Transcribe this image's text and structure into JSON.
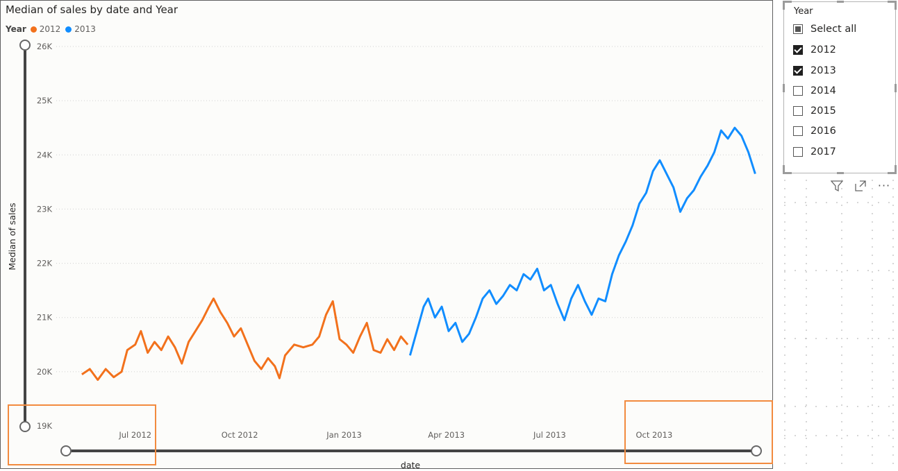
{
  "chart_data": {
    "type": "line",
    "title": "Median of sales by date and Year",
    "xlabel": "date",
    "ylabel": "Median of sales",
    "legend_title": "Year",
    "legend_position": "top-left",
    "grid": "horizontal dotted",
    "x_range": [
      "2012-05-01",
      "2013-12-30"
    ],
    "ylim": [
      19000,
      26000
    ],
    "y_ticks": [
      19000,
      20000,
      21000,
      22000,
      23000,
      24000,
      25000,
      26000
    ],
    "y_tick_labels": [
      "19K",
      "20K",
      "21K",
      "22K",
      "23K",
      "24K",
      "25K",
      "26K"
    ],
    "x_tick_labels": [
      "Jul 2012",
      "Oct 2012",
      "Jan 2013",
      "Apr 2013",
      "Jul 2013",
      "Oct 2013"
    ],
    "x_tick_dates": [
      "2012-07-01",
      "2012-10-01",
      "2013-01-01",
      "2013-04-01",
      "2013-07-01",
      "2013-10-01"
    ],
    "series": [
      {
        "name": "2012",
        "color": "#f2711c",
        "points": [
          [
            "2012-05-15",
            19950
          ],
          [
            "2012-05-22",
            20050
          ],
          [
            "2012-05-29",
            19850
          ],
          [
            "2012-06-05",
            20050
          ],
          [
            "2012-06-12",
            19900
          ],
          [
            "2012-06-19",
            20000
          ],
          [
            "2012-06-24",
            20400
          ],
          [
            "2012-07-01",
            20500
          ],
          [
            "2012-07-06",
            20750
          ],
          [
            "2012-07-12",
            20350
          ],
          [
            "2012-07-18",
            20550
          ],
          [
            "2012-07-24",
            20400
          ],
          [
            "2012-07-30",
            20650
          ],
          [
            "2012-08-05",
            20450
          ],
          [
            "2012-08-11",
            20150
          ],
          [
            "2012-08-17",
            20550
          ],
          [
            "2012-08-23",
            20750
          ],
          [
            "2012-08-29",
            20950
          ],
          [
            "2012-09-04",
            21200
          ],
          [
            "2012-09-08",
            21350
          ],
          [
            "2012-09-14",
            21100
          ],
          [
            "2012-09-20",
            20900
          ],
          [
            "2012-09-26",
            20650
          ],
          [
            "2012-10-02",
            20800
          ],
          [
            "2012-10-08",
            20500
          ],
          [
            "2012-10-14",
            20200
          ],
          [
            "2012-10-20",
            20050
          ],
          [
            "2012-10-26",
            20250
          ],
          [
            "2012-11-01",
            20100
          ],
          [
            "2012-11-05",
            19880
          ],
          [
            "2012-11-10",
            20300
          ],
          [
            "2012-11-18",
            20500
          ],
          [
            "2012-11-26",
            20450
          ],
          [
            "2012-12-04",
            20500
          ],
          [
            "2012-12-10",
            20650
          ],
          [
            "2012-12-16",
            21050
          ],
          [
            "2012-12-22",
            21300
          ],
          [
            "2012-12-28",
            20600
          ],
          [
            "2013-01-03",
            20500
          ],
          [
            "2013-01-09",
            20350
          ],
          [
            "2013-01-15",
            20650
          ],
          [
            "2013-01-21",
            20900
          ],
          [
            "2013-01-27",
            20400
          ],
          [
            "2013-02-02",
            20350
          ],
          [
            "2013-02-08",
            20600
          ],
          [
            "2013-02-14",
            20400
          ],
          [
            "2013-02-20",
            20650
          ],
          [
            "2013-02-26",
            20500
          ]
        ]
      },
      {
        "name": "2013",
        "color": "#118dff",
        "points": [
          [
            "2013-02-28",
            20300
          ],
          [
            "2013-03-06",
            20750
          ],
          [
            "2013-03-12",
            21200
          ],
          [
            "2013-03-16",
            21350
          ],
          [
            "2013-03-22",
            21000
          ],
          [
            "2013-03-28",
            21200
          ],
          [
            "2013-04-03",
            20750
          ],
          [
            "2013-04-09",
            20900
          ],
          [
            "2013-04-15",
            20550
          ],
          [
            "2013-04-21",
            20700
          ],
          [
            "2013-04-27",
            21000
          ],
          [
            "2013-05-03",
            21350
          ],
          [
            "2013-05-09",
            21500
          ],
          [
            "2013-05-15",
            21250
          ],
          [
            "2013-05-21",
            21400
          ],
          [
            "2013-05-27",
            21600
          ],
          [
            "2013-06-02",
            21500
          ],
          [
            "2013-06-08",
            21800
          ],
          [
            "2013-06-14",
            21700
          ],
          [
            "2013-06-20",
            21900
          ],
          [
            "2013-06-26",
            21500
          ],
          [
            "2013-07-02",
            21600
          ],
          [
            "2013-07-08",
            21250
          ],
          [
            "2013-07-14",
            20950
          ],
          [
            "2013-07-20",
            21350
          ],
          [
            "2013-07-26",
            21600
          ],
          [
            "2013-08-01",
            21300
          ],
          [
            "2013-08-07",
            21050
          ],
          [
            "2013-08-13",
            21350
          ],
          [
            "2013-08-19",
            21300
          ],
          [
            "2013-08-25",
            21800
          ],
          [
            "2013-08-31",
            22150
          ],
          [
            "2013-09-06",
            22400
          ],
          [
            "2013-09-12",
            22700
          ],
          [
            "2013-09-18",
            23100
          ],
          [
            "2013-09-24",
            23300
          ],
          [
            "2013-09-30",
            23700
          ],
          [
            "2013-10-06",
            23900
          ],
          [
            "2013-10-12",
            23650
          ],
          [
            "2013-10-18",
            23400
          ],
          [
            "2013-10-24",
            22950
          ],
          [
            "2013-10-30",
            23200
          ],
          [
            "2013-11-05",
            23350
          ],
          [
            "2013-11-11",
            23600
          ],
          [
            "2013-11-17",
            23800
          ],
          [
            "2013-11-23",
            24050
          ],
          [
            "2013-11-29",
            24450
          ],
          [
            "2013-12-05",
            24300
          ],
          [
            "2013-12-11",
            24500
          ],
          [
            "2013-12-17",
            24350
          ],
          [
            "2013-12-23",
            24050
          ],
          [
            "2013-12-29",
            23650
          ]
        ]
      }
    ]
  },
  "slicer": {
    "title": "Year",
    "items": [
      {
        "label": "Select all",
        "state": "partial"
      },
      {
        "label": "2012",
        "state": "checked"
      },
      {
        "label": "2013",
        "state": "checked"
      },
      {
        "label": "2014",
        "state": "unchecked"
      },
      {
        "label": "2015",
        "state": "unchecked"
      },
      {
        "label": "2016",
        "state": "unchecked"
      },
      {
        "label": "2017",
        "state": "unchecked"
      }
    ]
  },
  "header_icons": [
    "filter-icon",
    "focus-mode-icon",
    "more-options-icon"
  ],
  "highlight_color": "#f28a3e"
}
